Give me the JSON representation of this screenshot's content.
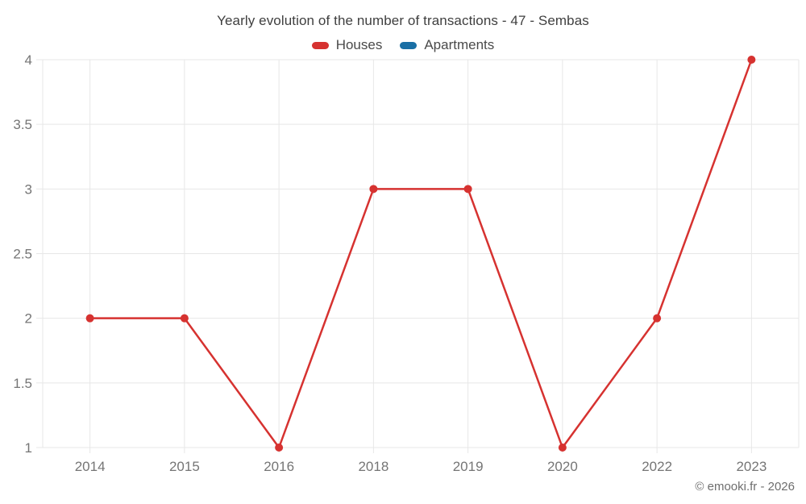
{
  "title": "Yearly evolution of the number of transactions - 47 - Sembas",
  "attribution": "© emooki.fr - 2026",
  "legend": {
    "items": [
      {
        "label": "Houses",
        "color": "#d63230"
      },
      {
        "label": "Apartments",
        "color": "#1a6fa5"
      }
    ]
  },
  "colors": {
    "houses": "#d63230",
    "apartments": "#1a6fa5",
    "grid": "#e7e7e7",
    "tick_label": "#757575",
    "title_text": "#3f3f3f",
    "legend_text": "#4a4a4a",
    "attribution_text": "#6e6e6e",
    "background": "#ffffff"
  },
  "chart_data": {
    "type": "line",
    "title": "Yearly evolution of the number of transactions - 47 - Sembas",
    "categories": [
      "2014",
      "2015",
      "2016",
      "2018",
      "2019",
      "2020",
      "2022",
      "2023"
    ],
    "series": [
      {
        "name": "Houses",
        "color": "#d63230",
        "values": [
          2,
          2,
          1,
          3,
          3,
          1,
          2,
          4
        ]
      },
      {
        "name": "Apartments",
        "color": "#1a6fa5",
        "values": []
      }
    ],
    "xlabel": "",
    "ylabel": "",
    "ylim": [
      1,
      4
    ],
    "yticks": [
      1,
      1.5,
      2,
      2.5,
      3,
      3.5,
      4
    ],
    "grid": true,
    "legend_position": "top",
    "point_radius": 5,
    "line_width": 2.5
  }
}
